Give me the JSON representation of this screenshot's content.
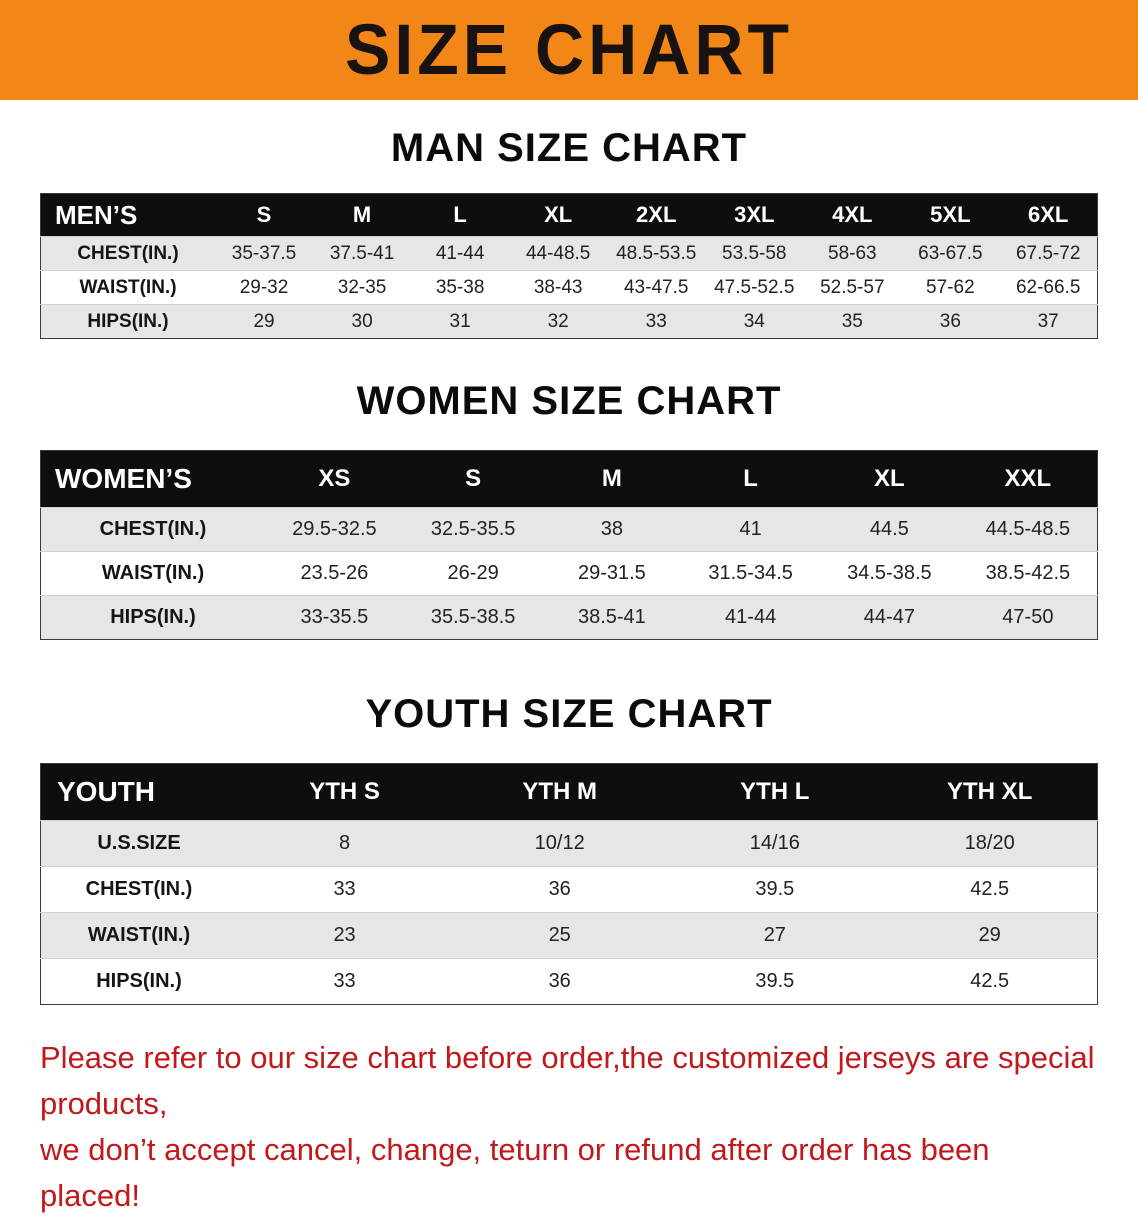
{
  "banner": {
    "title": "SIZE CHART",
    "bg_color": "#f28718",
    "text_color": "#181210"
  },
  "sections": [
    {
      "heading": "MAN SIZE CHART",
      "table": {
        "header": [
          "MEN’S",
          "S",
          "M",
          "L",
          "XL",
          "2XL",
          "3XL",
          "4XL",
          "5XL",
          "6XL"
        ],
        "rows": [
          {
            "label": "CHEST(IN.)",
            "values": [
              "35-37.5",
              "37.5-41",
              "41-44",
              "44-48.5",
              "48.5-53.5",
              "53.5-58",
              "58-63",
              "63-67.5",
              "67.5-72"
            ]
          },
          {
            "label": "WAIST(IN.)",
            "values": [
              "29-32",
              "32-35",
              "35-38",
              "38-43",
              "43-47.5",
              "47.5-52.5",
              "52.5-57",
              "57-62",
              "62-66.5"
            ]
          },
          {
            "label": "HIPS(IN.)",
            "values": [
              "29",
              "30",
              "31",
              "32",
              "33",
              "34",
              "35",
              "36",
              "37"
            ]
          }
        ]
      }
    },
    {
      "heading": "WOMEN SIZE CHART",
      "table": {
        "header": [
          "WOMEN’S",
          "XS",
          "S",
          "M",
          "L",
          "XL",
          "XXL"
        ],
        "rows": [
          {
            "label": "CHEST(IN.)",
            "values": [
              "29.5-32.5",
              "32.5-35.5",
              "38",
              "41",
              "44.5",
              "44.5-48.5"
            ]
          },
          {
            "label": "WAIST(IN.)",
            "values": [
              "23.5-26",
              "26-29",
              "29-31.5",
              "31.5-34.5",
              "34.5-38.5",
              "38.5-42.5"
            ]
          },
          {
            "label": "HIPS(IN.)",
            "values": [
              "33-35.5",
              "35.5-38.5",
              "38.5-41",
              "41-44",
              "44-47",
              "47-50"
            ]
          }
        ]
      }
    },
    {
      "heading": "YOUTH SIZE CHART",
      "table": {
        "header": [
          "YOUTH",
          "YTH S",
          "YTH M",
          "YTH L",
          "YTH XL"
        ],
        "rows": [
          {
            "label": "U.S.SIZE",
            "values": [
              "8",
              "10/12",
              "14/16",
              "18/20"
            ]
          },
          {
            "label": "CHEST(IN.)",
            "values": [
              "33",
              "36",
              "39.5",
              "42.5"
            ]
          },
          {
            "label": "WAIST(IN.)",
            "values": [
              "23",
              "25",
              "27",
              "29"
            ]
          },
          {
            "label": "HIPS(IN.)",
            "values": [
              "33",
              "36",
              "39.5",
              "42.5"
            ]
          }
        ]
      }
    }
  ],
  "disclaimer": {
    "line1": "Please refer to our size chart before order,the customized jerseys are special products,",
    "line2": "we don’t accept cancel, change, teturn or refund after order has been placed!",
    "color": "#c2181c"
  },
  "style_colors": {
    "table_header_bg": "#0e0e0e",
    "row_stripe": "#e6e6e6"
  }
}
